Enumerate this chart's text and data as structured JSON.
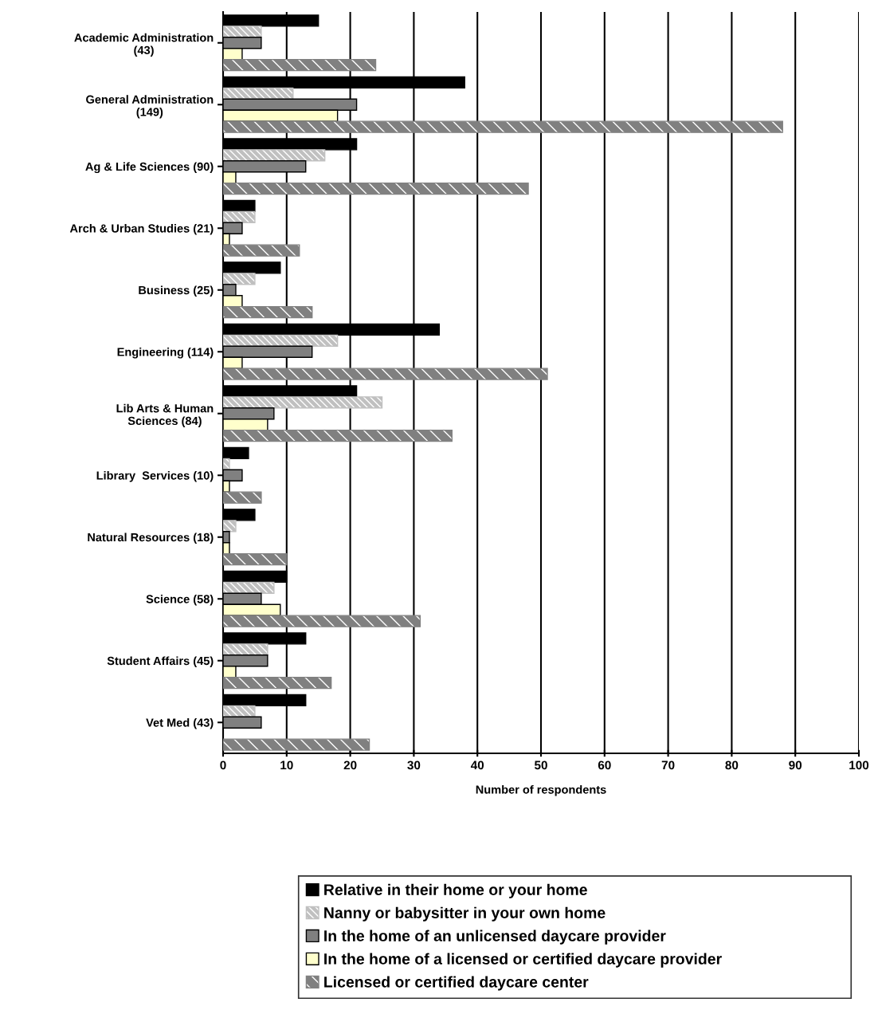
{
  "chart_data": {
    "type": "bar",
    "orientation": "horizontal",
    "xlabel": "Number of respondents",
    "categories": [
      "Academic Administration\n(43)",
      "General Administration\n(149)",
      "Ag & Life Sciences (90)",
      "Arch & Urban Studies (21)",
      "Business (25)",
      "Engineering (114)",
      "Lib Arts & Human\nSciences (84)",
      "Library  Services (10)",
      "Natural Resources (18)",
      "Science (58)",
      "Student Affairs (45)",
      "Vet Med (43)"
    ],
    "series": [
      {
        "name": "Relative in their home or your home",
        "color": "#000000",
        "values": [
          15,
          38,
          21,
          5,
          9,
          34,
          21,
          4,
          5,
          10,
          13,
          13
        ]
      },
      {
        "name": "Nanny or babysitter in your own home",
        "color": "#c0c0c0",
        "values": [
          6,
          11,
          16,
          5,
          5,
          18,
          25,
          1,
          2,
          8,
          7,
          5
        ]
      },
      {
        "name": "In the home of an unlicensed daycare provider",
        "color": "#808080",
        "values": [
          6,
          21,
          13,
          3,
          2,
          14,
          8,
          3,
          1,
          6,
          7,
          6
        ]
      },
      {
        "name": "In the home of a licensed or certified daycare provider",
        "color": "#ffffcc",
        "values": [
          3,
          18,
          2,
          1,
          3,
          3,
          7,
          1,
          1,
          9,
          2,
          null
        ]
      },
      {
        "name": "Licensed or certified daycare center",
        "color": "#808080",
        "values": [
          24,
          88,
          48,
          12,
          14,
          51,
          36,
          6,
          10,
          31,
          17,
          23
        ]
      }
    ],
    "xlim": [
      0,
      100
    ],
    "xticks": [
      0,
      10,
      20,
      30,
      40,
      50,
      60,
      70,
      80,
      90,
      100
    ],
    "grid": "x",
    "legend": "bottom"
  }
}
